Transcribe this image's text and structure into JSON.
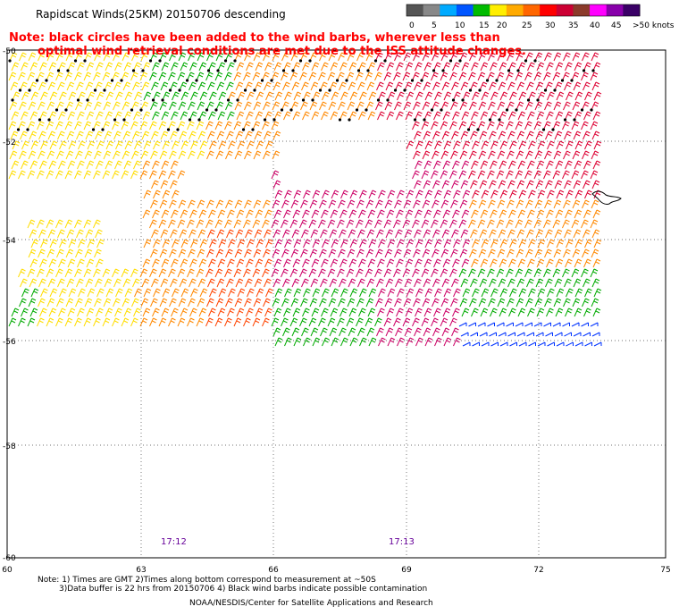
{
  "title": "Rapidscat Winds(25KM) 20150706 descending",
  "note_lines": [
    "Note: black circles have been added to the wind barbs, wherever less than",
    "optimal wind retrieval conditions are met due to the ISS attitude changes."
  ],
  "colorbar": {
    "labels": [
      "0",
      "5",
      "10",
      "15",
      "20",
      "25",
      "30",
      "35",
      "40",
      "45",
      ">50 knots"
    ],
    "colors": [
      "#555555",
      "#888888",
      "#00aaff",
      "#0055ff",
      "#00bb00",
      "#ffee00",
      "#ffaa00",
      "#ff6600",
      "#ff0000",
      "#cc0033",
      "#8b3a2a",
      "#ff00ff",
      "#8800aa",
      "#3a0066"
    ]
  },
  "axes": {
    "x_ticks": [
      "60",
      "63",
      "66",
      "69",
      "72",
      "75"
    ],
    "y_ticks": [
      "-50",
      "-52",
      "-54",
      "-56",
      "-58",
      "-60"
    ]
  },
  "time_labels": [
    "17:12",
    "17:13"
  ],
  "footer": {
    "notes_line1": "Note: 1) Times are GMT 2)Times along bottom correspond to measurement at ~50S",
    "notes_line2": "3)Data buffer is 22 hrs from 20150706 4) Black wind barbs indicate possible contamination",
    "credit": "NOAA/NESDIS/Center for Satellite Applications and Research"
  },
  "palette": {
    "green": "#00aa00",
    "yellow": "#ffdd00",
    "orange": "#ff8800",
    "red_orange": "#ff4400",
    "red": "#dd0033",
    "magenta": "#cc0066",
    "blue": "#0033ff",
    "cyan": "#00aadd",
    "black": "#000000",
    "note_red": "#ff0000",
    "time_purple": "#660099"
  }
}
